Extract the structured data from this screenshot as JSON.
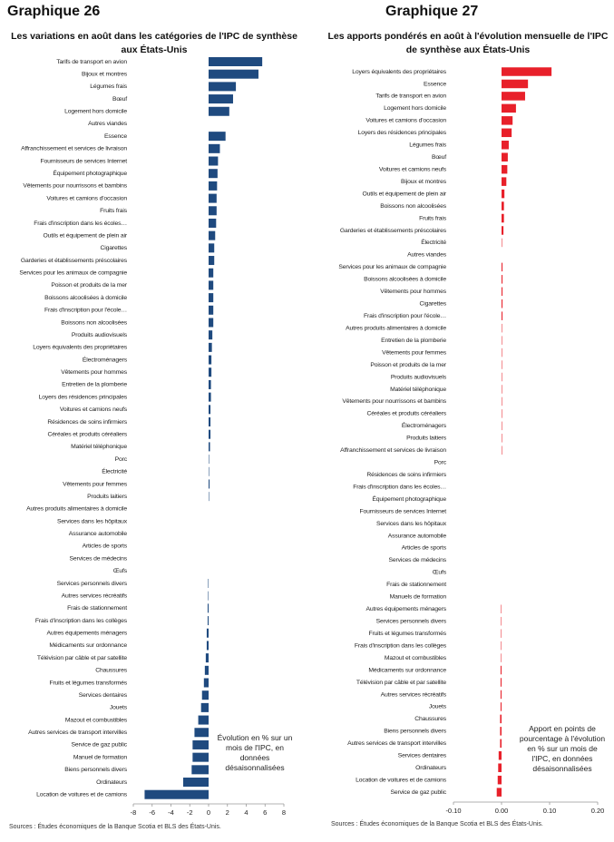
{
  "chart_data": [
    {
      "type": "bar",
      "orientation": "horizontal",
      "header": "Graphique 26",
      "title": "Les variations en août dans les catégories de l'IPC de synthèse aux États-Unis",
      "note": "Évolution en % sur un mois de l'IPC, en données désaisonnalisées",
      "source": "Sources : Études économiques de la Banque Scotia et BLS des États-Unis.",
      "color": "#1f4a7f",
      "categories": [
        "Tarifs de transport en avion",
        "Bijoux et montres",
        "Légumes frais",
        "Bœuf",
        "Logement hors domicile",
        "Autres viandes",
        "Essence",
        "Affranchissement et services de livraison",
        "Fournisseurs de services Internet",
        "Équipement photographique",
        "Vêtements pour nourrissons et bambins",
        "Voitures et camions d'occasion",
        "Fruits frais",
        "Frais d'inscription dans les écoles…",
        "Outils et équipement de plein air",
        "Cigarettes",
        "Garderies et établissements préscolaires",
        "Services pour les animaux de compagnie",
        "Poisson et produits de la mer",
        "Boissons alcoolisées à domicile",
        "Frais d'inscription pour l'école…",
        "Boissons non alcoolisées",
        "Produits audiovisuels",
        "Loyers équivalents des propriétaires",
        "Électroménagers",
        "Vêtements pour hommes",
        "Entretien de la plomberie",
        "Loyers des résidences principales",
        "Voitures et camions neufs",
        "Résidences de soins infirmiers",
        "Céréales et produits céréaliers",
        "Matériel téléphonique",
        "Porc",
        "Électricité",
        "Vêtements pour femmes",
        "Produits laitiers",
        "Autres produits alimentaires à domicile",
        "Services dans les hôpitaux",
        "Assurance automobile",
        "Articles de sports",
        "Services de médecins",
        "Œufs",
        "Services personnels divers",
        "Autres services récréatifs",
        "Frais de stationnement",
        "Frais d'inscription dans les collèges",
        "Autres équipements ménagers",
        "Médicaments sur ordonnance",
        "Télévision par câble et par satellite",
        "Chaussures",
        "Fruits et légumes transformés",
        "Services dentaires",
        "Jouets",
        "Mazout et combustibles",
        "Autres services de transport intervilles",
        "Service de gaz public",
        "Manuel de formation",
        "Biens personnels divers",
        "Ordinateurs",
        "Location de voitures et de camions"
      ],
      "values": [
        5.7,
        5.3,
        2.9,
        2.6,
        2.2,
        0,
        1.8,
        1.2,
        1.0,
        0.95,
        0.9,
        0.85,
        0.85,
        0.8,
        0.7,
        0.6,
        0.6,
        0.5,
        0.5,
        0.5,
        0.5,
        0.5,
        0.4,
        0.35,
        0.3,
        0.3,
        0.25,
        0.25,
        0.2,
        0.2,
        0.2,
        0.15,
        0.05,
        0.05,
        0.1,
        0.05,
        0,
        0,
        0,
        0,
        0,
        0,
        -0.05,
        -0.05,
        -0.1,
        -0.1,
        -0.2,
        -0.2,
        -0.3,
        -0.4,
        -0.5,
        -0.7,
        -0.8,
        -1.1,
        -1.5,
        -1.7,
        -1.7,
        -1.8,
        -2.7,
        -6.8
      ],
      "xlim": [
        -8,
        8
      ],
      "xticks": [
        -8,
        -6,
        -4,
        -2,
        0,
        2,
        4,
        6,
        8
      ]
    },
    {
      "type": "bar",
      "orientation": "horizontal",
      "header": "Graphique 27",
      "title": "Les apports pondérés en août à l'évolution mensuelle de l'IPC de synthèse aux États-Unis",
      "note": "Apport en points de pourcentage à l'évolution en % sur un mois de l'IPC, en données désaisonnalisées",
      "source": "Sources : Études économiques de la Banque Scotia et BLS des États-Unis.",
      "color": "#e8202a",
      "categories": [
        "Loyers équivalents des propriétaires",
        "Essence",
        "Tarifs de transport en avion",
        "Logement hors domicile",
        "Voitures et camions d'occasion",
        "Loyers des résidences principales",
        "Légumes frais",
        "Bœuf",
        "Voitures et camions neufs",
        "Bijoux et montres",
        "Outils et équipement de plein air",
        "Boissons non alcoolisées",
        "Fruits frais",
        "Garderies et établissements préscolaires",
        "Électricité",
        "Autres viandes",
        "Services pour les animaux de compagnie",
        "Boissons alcoolisées à domicile",
        "Vêtements pour hommes",
        "Cigarettes",
        "Frais d'inscription pour l'école…",
        "Autres produits alimentaires à domicile",
        "Entretien de la plomberie",
        "Vêtements pour femmes",
        "Poisson et produits de la mer",
        "Produits audiovisuels",
        "Matériel téléphonique",
        "Vêtements pour nourrissons et bambins",
        "Céréales et produits céréaliers",
        "Électroménagers",
        "Produits laitiers",
        "Affranchissement et services de livraison",
        "Porc",
        "Résidences de soins infirmiers",
        "Frais d'inscription dans les écoles…",
        "Équipement photographique",
        "Fournisseurs de services Internet",
        "Services dans les hôpitaux",
        "Assurance automobile",
        "Articles de sports",
        "Services de médecins",
        "Œufs",
        "Frais de stationnement",
        "Manuels de formation",
        "Autres équipements ménagers",
        "Services personnels divers",
        "Fruits et légumes transformés",
        "Frais d'inscription dans les collèges",
        "Mazout et combustibles",
        "Médicaments sur ordonnance",
        "Télévision par câble et par satellite",
        "Autres services récréatifs",
        "Jouets",
        "Chaussures",
        "Biens personnels divers",
        "Autres services de transport intervilles",
        "Services dentaires",
        "Ordinateurs",
        "Location de voitures et de camions",
        "Service de gaz public"
      ],
      "values": [
        0.104,
        0.055,
        0.049,
        0.03,
        0.023,
        0.021,
        0.015,
        0.013,
        0.012,
        0.01,
        0.006,
        0.005,
        0.005,
        0.004,
        0.001,
        0,
        0.002,
        0.002,
        0.002,
        0.002,
        0.002,
        0.001,
        0.001,
        0.001,
        0.001,
        0.001,
        0.001,
        0.001,
        0.001,
        0.001,
        0.001,
        0.001,
        0,
        0,
        0,
        0,
        0,
        0,
        0,
        0,
        0,
        0,
        0,
        0,
        -0.001,
        -0.001,
        -0.001,
        -0.001,
        -0.001,
        -0.002,
        -0.002,
        -0.002,
        -0.002,
        -0.003,
        -0.003,
        -0.003,
        -0.006,
        -0.007,
        -0.008,
        -0.01
      ],
      "xlim": [
        -0.1,
        0.2
      ],
      "xticks": [
        {
          "value": -0.1,
          "label": "-0.10"
        },
        {
          "value": 0,
          "label": "0.00"
        },
        {
          "value": 0.1,
          "label": "0.10"
        },
        {
          "value": 0.2,
          "label": "0.20"
        }
      ]
    }
  ]
}
